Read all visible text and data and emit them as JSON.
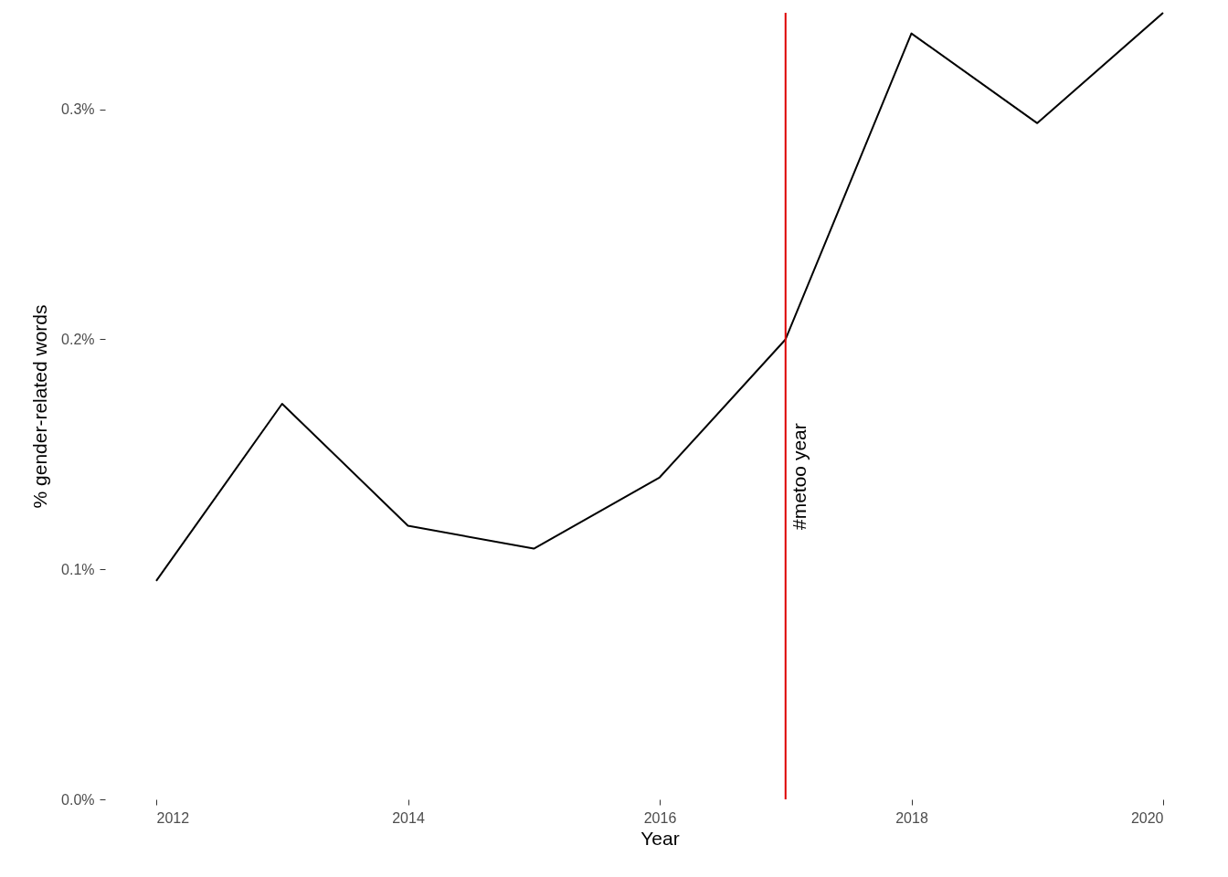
{
  "chart_data": {
    "type": "line",
    "xlabel": "Year",
    "ylabel": "% gender-related words",
    "x": [
      2012,
      2013,
      2014,
      2015,
      2016,
      2017,
      2018,
      2019,
      2020
    ],
    "series": [
      {
        "color": "#000000",
        "values": [
          0.095,
          0.172,
          0.119,
          0.109,
          0.14,
          0.2,
          0.333,
          0.294,
          0.342
        ]
      }
    ],
    "xlim": [
      2012,
      2020
    ],
    "xticks": [
      2012,
      2014,
      2016,
      2018,
      2020
    ],
    "ylim": [
      0,
      0.342
    ],
    "yticks": [
      {
        "value": 0,
        "label": "0.0%"
      },
      {
        "value": 0.1,
        "label": "0.1%"
      },
      {
        "value": 0.2,
        "label": "0.2%"
      },
      {
        "value": 0.3,
        "label": "0.3%"
      }
    ],
    "ref_lines": [
      {
        "axis": "x",
        "value": 2017,
        "label": "#metoo year",
        "color": "#dd0000"
      }
    ],
    "grid": false,
    "marker": "none",
    "line_style": "solid"
  }
}
